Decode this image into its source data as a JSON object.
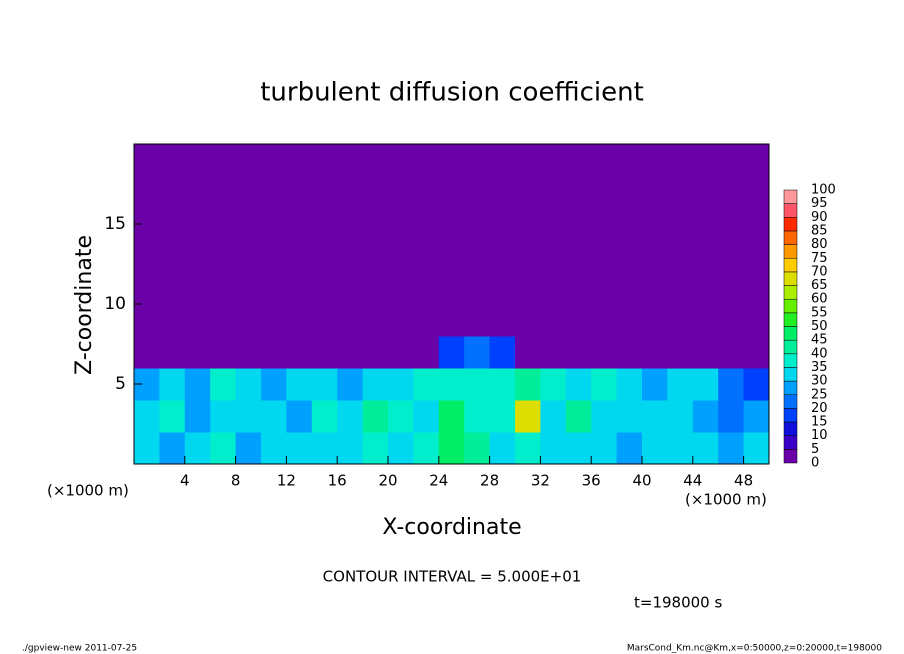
{
  "chart_data": {
    "type": "heatmap",
    "title": "turbulent diffusion coefficient",
    "xlabel": "X-coordinate",
    "ylabel": "Z-coordinate",
    "x_unit": "(×1000 m)",
    "y_unit": "(×1000 m)",
    "contour_note": "CONTOUR INTERVAL = 5.000E+01",
    "time_note": "t=198000 s",
    "footer_left": "./gpview-new  2011-07-25",
    "footer_right": "MarsCond_Km.nc@Km,x=0:50000,z=0:20000,t=198000",
    "xlim": [
      0,
      50
    ],
    "ylim": [
      0,
      20
    ],
    "xticks": [
      4,
      8,
      12,
      16,
      20,
      24,
      28,
      32,
      36,
      40,
      44,
      48
    ],
    "yticks": [
      5,
      10,
      15
    ],
    "x": [
      1,
      3,
      5,
      7,
      9,
      11,
      13,
      15,
      17,
      19,
      21,
      23,
      25,
      27,
      29,
      31,
      33,
      35,
      37,
      39,
      41,
      43,
      45,
      47,
      49
    ],
    "y": [
      1,
      3,
      5,
      7,
      9,
      11,
      13,
      15,
      17,
      19
    ],
    "z": [
      [
        30,
        25,
        30,
        35,
        25,
        30,
        30,
        30,
        30,
        35,
        30,
        35,
        45,
        40,
        30,
        35,
        30,
        30,
        30,
        25,
        30,
        30,
        30,
        25,
        30
      ],
      [
        30,
        35,
        25,
        30,
        30,
        30,
        25,
        35,
        30,
        40,
        35,
        30,
        45,
        35,
        35,
        65,
        30,
        40,
        30,
        30,
        30,
        30,
        25,
        20,
        25
      ],
      [
        25,
        30,
        25,
        35,
        30,
        25,
        30,
        30,
        25,
        30,
        30,
        35,
        35,
        35,
        35,
        40,
        35,
        30,
        35,
        30,
        25,
        30,
        30,
        20,
        15
      ],
      [
        0,
        0,
        0,
        0,
        0,
        0,
        0,
        0,
        0,
        0,
        0,
        0,
        15,
        20,
        15,
        0,
        0,
        0,
        0,
        0,
        0,
        0,
        0,
        0,
        0
      ],
      [
        0,
        0,
        0,
        0,
        0,
        0,
        0,
        0,
        0,
        0,
        0,
        0,
        0,
        0,
        0,
        0,
        0,
        0,
        0,
        0,
        0,
        0,
        0,
        0,
        0
      ],
      [
        0,
        0,
        0,
        0,
        0,
        0,
        0,
        0,
        0,
        0,
        0,
        0,
        0,
        0,
        0,
        0,
        0,
        0,
        0,
        0,
        0,
        0,
        0,
        0,
        0
      ],
      [
        0,
        0,
        0,
        0,
        0,
        0,
        0,
        0,
        0,
        0,
        0,
        0,
        0,
        0,
        0,
        0,
        0,
        0,
        0,
        0,
        0,
        0,
        0,
        0,
        0
      ],
      [
        0,
        0,
        0,
        0,
        0,
        0,
        0,
        0,
        0,
        0,
        0,
        0,
        0,
        0,
        0,
        0,
        0,
        0,
        0,
        0,
        0,
        0,
        0,
        0,
        0
      ],
      [
        0,
        0,
        0,
        0,
        0,
        0,
        0,
        0,
        0,
        0,
        0,
        0,
        0,
        0,
        0,
        0,
        0,
        0,
        0,
        0,
        0,
        0,
        0,
        0,
        0
      ],
      [
        0,
        0,
        0,
        0,
        0,
        0,
        0,
        0,
        0,
        0,
        0,
        0,
        0,
        0,
        0,
        0,
        0,
        0,
        0,
        0,
        0,
        0,
        0,
        0,
        0
      ]
    ],
    "levels": [
      0,
      5,
      10,
      15,
      20,
      25,
      30,
      35,
      40,
      45,
      50,
      55,
      60,
      65,
      70,
      75,
      80,
      85,
      90,
      95,
      100
    ],
    "colors": [
      "#6a00a8",
      "#3a00c8",
      "#1010dd",
      "#0040ff",
      "#0070ff",
      "#00a0ff",
      "#00d8f0",
      "#00eecc",
      "#00ee99",
      "#00ee66",
      "#22ee22",
      "#66ee00",
      "#aaee00",
      "#dddd00",
      "#ffcc00",
      "#ff9900",
      "#ff6600",
      "#ff2a00",
      "#ff5566",
      "#ff9999"
    ]
  }
}
